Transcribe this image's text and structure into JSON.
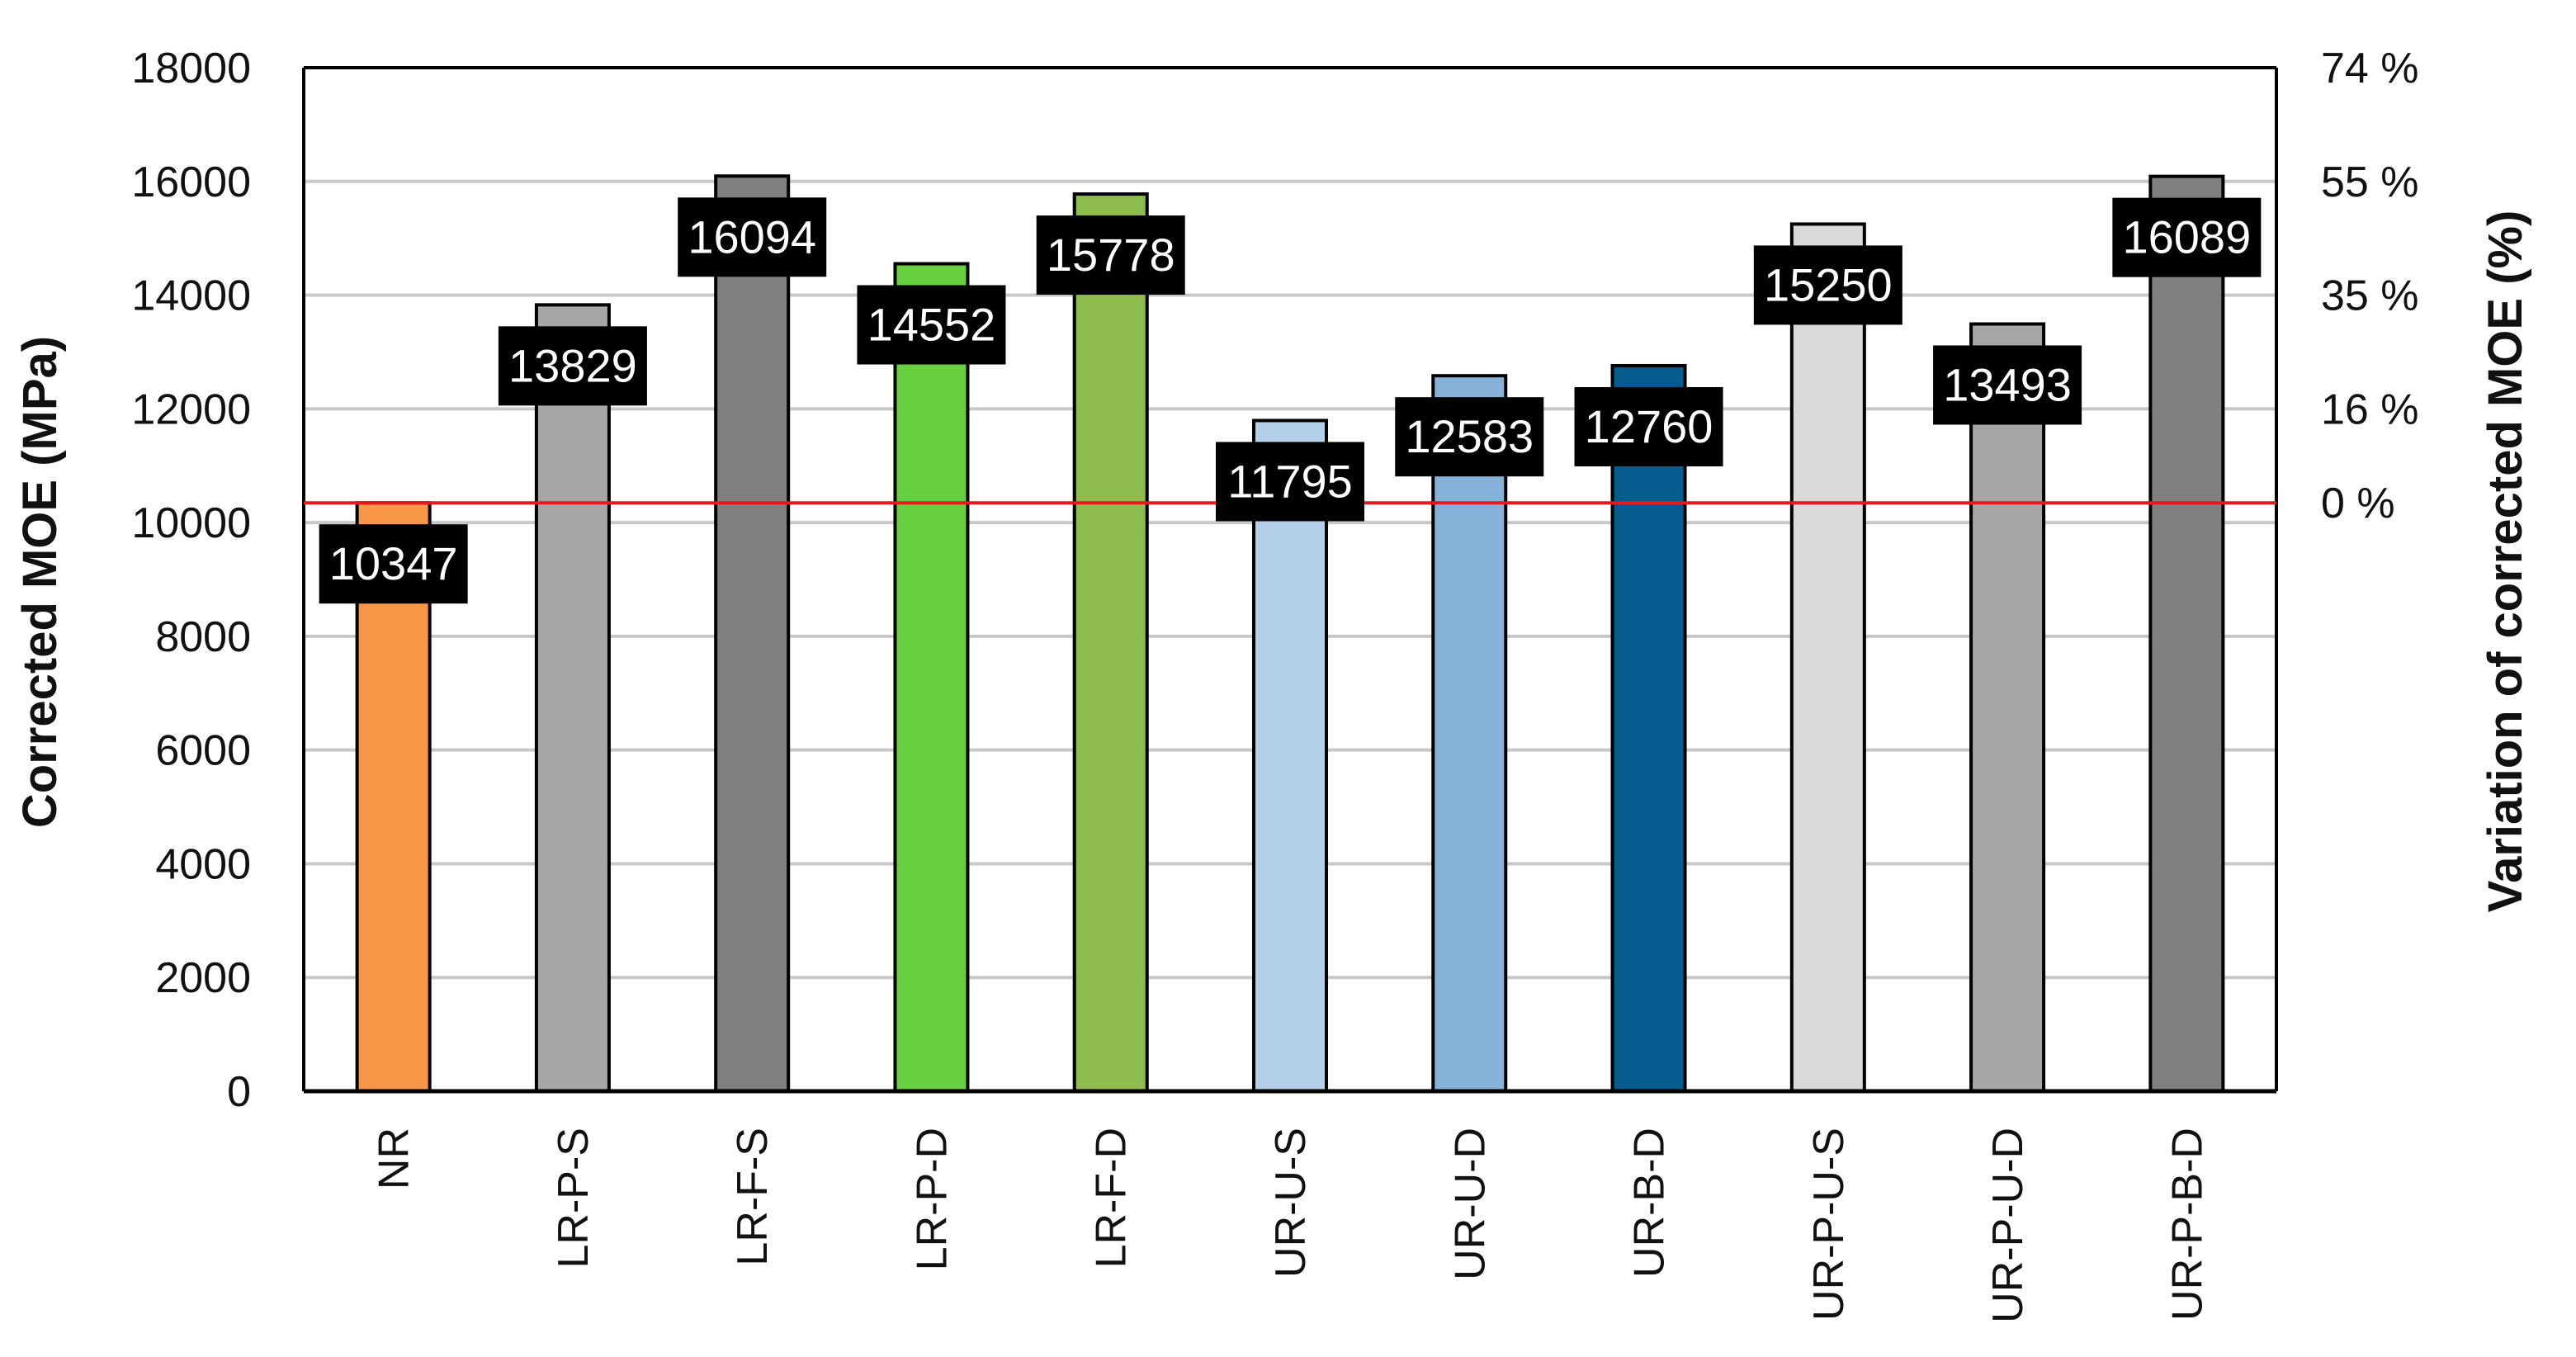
{
  "chart_data": {
    "type": "bar",
    "title": "",
    "ylabel": "Corrected MOE (MPa)",
    "y2label": "Variation of corrected MOE (%)",
    "xlabel": "",
    "categories": [
      "NR",
      "LR-P-S",
      "LR-F-S",
      "LR-P-D",
      "LR-F-D",
      "UR-U-S",
      "UR-U-D",
      "UR-B-D",
      "UR-P-U-S",
      "UR-P-U-D",
      "UR-P-B-D"
    ],
    "values": [
      10347,
      13829,
      16094,
      14552,
      15778,
      11795,
      12583,
      12760,
      15250,
      13493,
      16089
    ],
    "data_labels": [
      "10347",
      "13829",
      "16094",
      "14552",
      "15778",
      "11795",
      "12583",
      "12760",
      "15250",
      "13493",
      "16089"
    ],
    "ylim": [
      0,
      18000
    ],
    "yticks": [
      "0",
      "2000",
      "4000",
      "6000",
      "8000",
      "10000",
      "12000",
      "14000",
      "16000",
      "18000"
    ],
    "y2ticks": [
      {
        "label": "0 %",
        "value": 10347
      },
      {
        "label": "16 %",
        "value": 12000
      },
      {
        "label": "35 %",
        "value": 14000
      },
      {
        "label": "55 %",
        "value": 16000
      },
      {
        "label": "74 %",
        "value": 18000
      }
    ],
    "reference_line": {
      "value": 10347,
      "color": "#e31a1c"
    },
    "bar_colors": [
      "#f79646",
      "#a6a6a6",
      "#7f7f7f",
      "#66d040",
      "#8fbc4f",
      "#b4cfe8",
      "#86b2d9",
      "#065b8f",
      "#d9d9d9",
      "#a6a6a6",
      "#808080"
    ],
    "grid": true,
    "legend": "none"
  }
}
